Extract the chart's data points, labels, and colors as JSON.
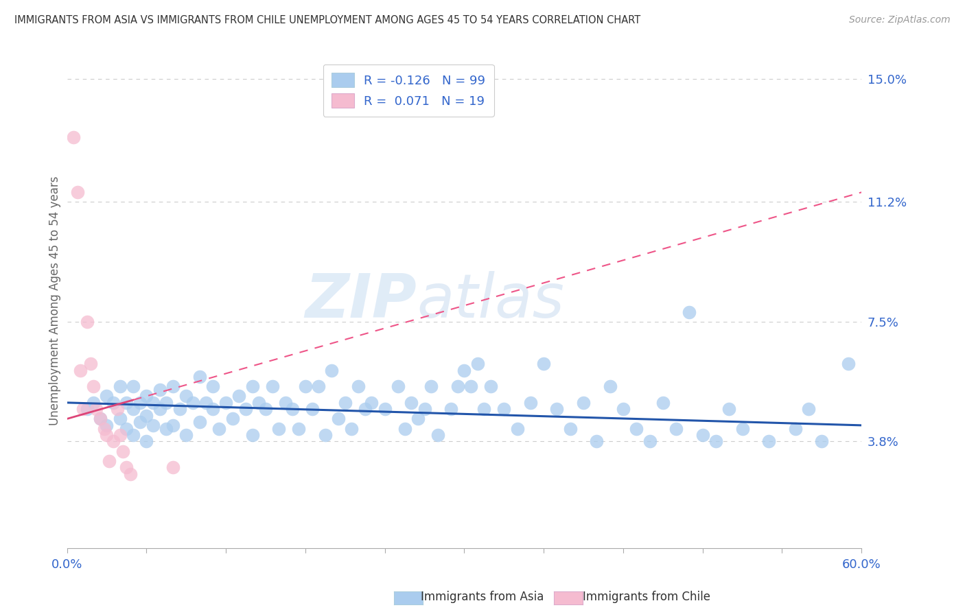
{
  "title": "IMMIGRANTS FROM ASIA VS IMMIGRANTS FROM CHILE UNEMPLOYMENT AMONG AGES 45 TO 54 YEARS CORRELATION CHART",
  "source": "Source: ZipAtlas.com",
  "ylabel": "Unemployment Among Ages 45 to 54 years",
  "x_min": 0.0,
  "x_max": 0.6,
  "y_min": 0.005,
  "y_max": 0.158,
  "y_ticks": [
    0.038,
    0.075,
    0.112,
    0.15
  ],
  "y_tick_labels": [
    "3.8%",
    "7.5%",
    "11.2%",
    "15.0%"
  ],
  "watermark_zip": "ZIP",
  "watermark_atlas": "atlas",
  "legend_asia": "Immigrants from Asia",
  "legend_chile": "Immigrants from Chile",
  "R_asia": -0.126,
  "N_asia": 99,
  "R_chile": 0.071,
  "N_chile": 19,
  "color_asia": "#aaccee",
  "color_asia_line": "#2255aa",
  "color_chile": "#f5bbd0",
  "color_chile_line": "#ee5588",
  "color_chile_solid": "#dd4477",
  "background_color": "#ffffff",
  "text_color_blue": "#3366cc",
  "asia_x": [
    0.015,
    0.02,
    0.025,
    0.03,
    0.03,
    0.035,
    0.04,
    0.04,
    0.045,
    0.045,
    0.05,
    0.05,
    0.05,
    0.055,
    0.055,
    0.06,
    0.06,
    0.06,
    0.065,
    0.065,
    0.07,
    0.07,
    0.075,
    0.075,
    0.08,
    0.08,
    0.085,
    0.09,
    0.09,
    0.095,
    0.1,
    0.1,
    0.105,
    0.11,
    0.11,
    0.115,
    0.12,
    0.125,
    0.13,
    0.135,
    0.14,
    0.14,
    0.145,
    0.15,
    0.155,
    0.16,
    0.165,
    0.17,
    0.175,
    0.18,
    0.185,
    0.19,
    0.195,
    0.2,
    0.205,
    0.21,
    0.215,
    0.22,
    0.225,
    0.23,
    0.24,
    0.25,
    0.255,
    0.26,
    0.265,
    0.27,
    0.275,
    0.28,
    0.29,
    0.295,
    0.3,
    0.305,
    0.31,
    0.315,
    0.32,
    0.33,
    0.34,
    0.35,
    0.36,
    0.37,
    0.38,
    0.39,
    0.4,
    0.41,
    0.42,
    0.43,
    0.44,
    0.45,
    0.46,
    0.47,
    0.48,
    0.49,
    0.5,
    0.51,
    0.53,
    0.55,
    0.56,
    0.57,
    0.59
  ],
  "asia_y": [
    0.048,
    0.05,
    0.045,
    0.052,
    0.043,
    0.05,
    0.055,
    0.045,
    0.05,
    0.042,
    0.048,
    0.055,
    0.04,
    0.05,
    0.044,
    0.052,
    0.046,
    0.038,
    0.05,
    0.043,
    0.048,
    0.054,
    0.042,
    0.05,
    0.055,
    0.043,
    0.048,
    0.052,
    0.04,
    0.05,
    0.058,
    0.044,
    0.05,
    0.048,
    0.055,
    0.042,
    0.05,
    0.045,
    0.052,
    0.048,
    0.055,
    0.04,
    0.05,
    0.048,
    0.055,
    0.042,
    0.05,
    0.048,
    0.042,
    0.055,
    0.048,
    0.055,
    0.04,
    0.06,
    0.045,
    0.05,
    0.042,
    0.055,
    0.048,
    0.05,
    0.048,
    0.055,
    0.042,
    0.05,
    0.045,
    0.048,
    0.055,
    0.04,
    0.048,
    0.055,
    0.06,
    0.055,
    0.062,
    0.048,
    0.055,
    0.048,
    0.042,
    0.05,
    0.062,
    0.048,
    0.042,
    0.05,
    0.038,
    0.055,
    0.048,
    0.042,
    0.038,
    0.05,
    0.042,
    0.078,
    0.04,
    0.038,
    0.048,
    0.042,
    0.038,
    0.042,
    0.048,
    0.038,
    0.062
  ],
  "chile_x": [
    0.005,
    0.008,
    0.01,
    0.012,
    0.015,
    0.018,
    0.02,
    0.022,
    0.025,
    0.028,
    0.03,
    0.032,
    0.035,
    0.038,
    0.04,
    0.042,
    0.045,
    0.048,
    0.08
  ],
  "chile_y": [
    0.132,
    0.115,
    0.06,
    0.048,
    0.075,
    0.062,
    0.055,
    0.048,
    0.045,
    0.042,
    0.04,
    0.032,
    0.038,
    0.048,
    0.04,
    0.035,
    0.03,
    0.028,
    0.03
  ]
}
